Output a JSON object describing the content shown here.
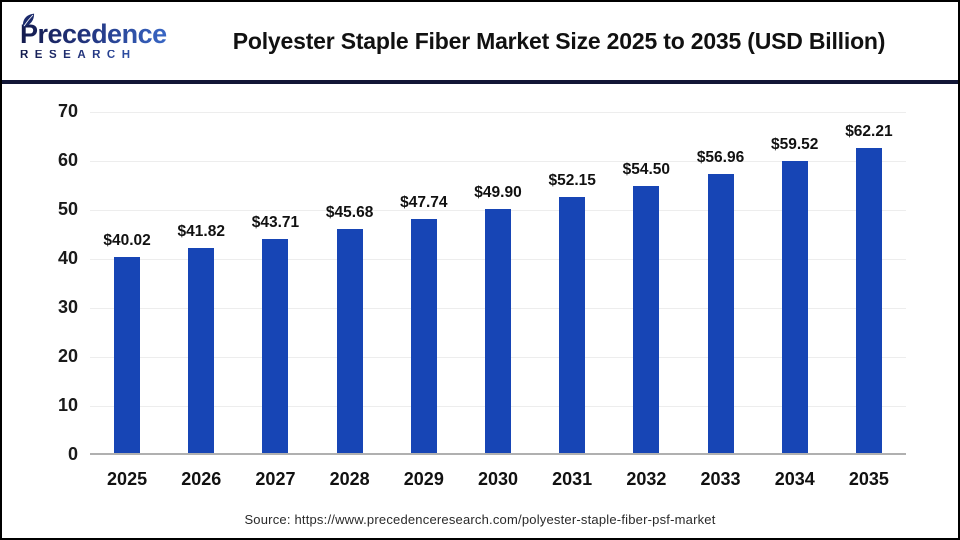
{
  "header": {
    "logo": {
      "line1": "Precedence",
      "line2": "RESEARCH",
      "icon": "leaf",
      "gradient_start": "#141b4d",
      "gradient_end": "#3e74d8"
    },
    "title": "Polyester Staple Fiber Market Size 2025 to 2035 (USD Billion)"
  },
  "chart_data": {
    "type": "bar",
    "title": "Polyester Staple Fiber Market Size 2025 to 2035 (USD Billion)",
    "categories": [
      "2025",
      "2026",
      "2027",
      "2028",
      "2029",
      "2030",
      "2031",
      "2032",
      "2033",
      "2034",
      "2035"
    ],
    "values": [
      40.02,
      41.82,
      43.71,
      45.68,
      47.74,
      49.9,
      52.15,
      54.5,
      56.96,
      59.52,
      62.21
    ],
    "labels": [
      "$40.02",
      "$41.82",
      "$43.71",
      "$45.68",
      "$47.74",
      "$49.90",
      "$52.15",
      "$54.50",
      "$56.96",
      "$59.52",
      "$62.21"
    ],
    "xlabel": "",
    "ylabel": "",
    "ylim": [
      0,
      70
    ],
    "yticks": [
      0,
      10,
      20,
      30,
      40,
      50,
      60,
      70
    ],
    "grid": "horizontal",
    "legend": "none",
    "bar_color": "#1745B5",
    "unit": "USD Billion"
  },
  "footer": {
    "source": "Source: https://www.precedenceresearch.com/polyester-staple-fiber-psf-market"
  },
  "colors": {
    "divider_navy": "#121636",
    "axis_line": "#b0b0b0",
    "gridline": "#ededed",
    "border": "#000000"
  }
}
